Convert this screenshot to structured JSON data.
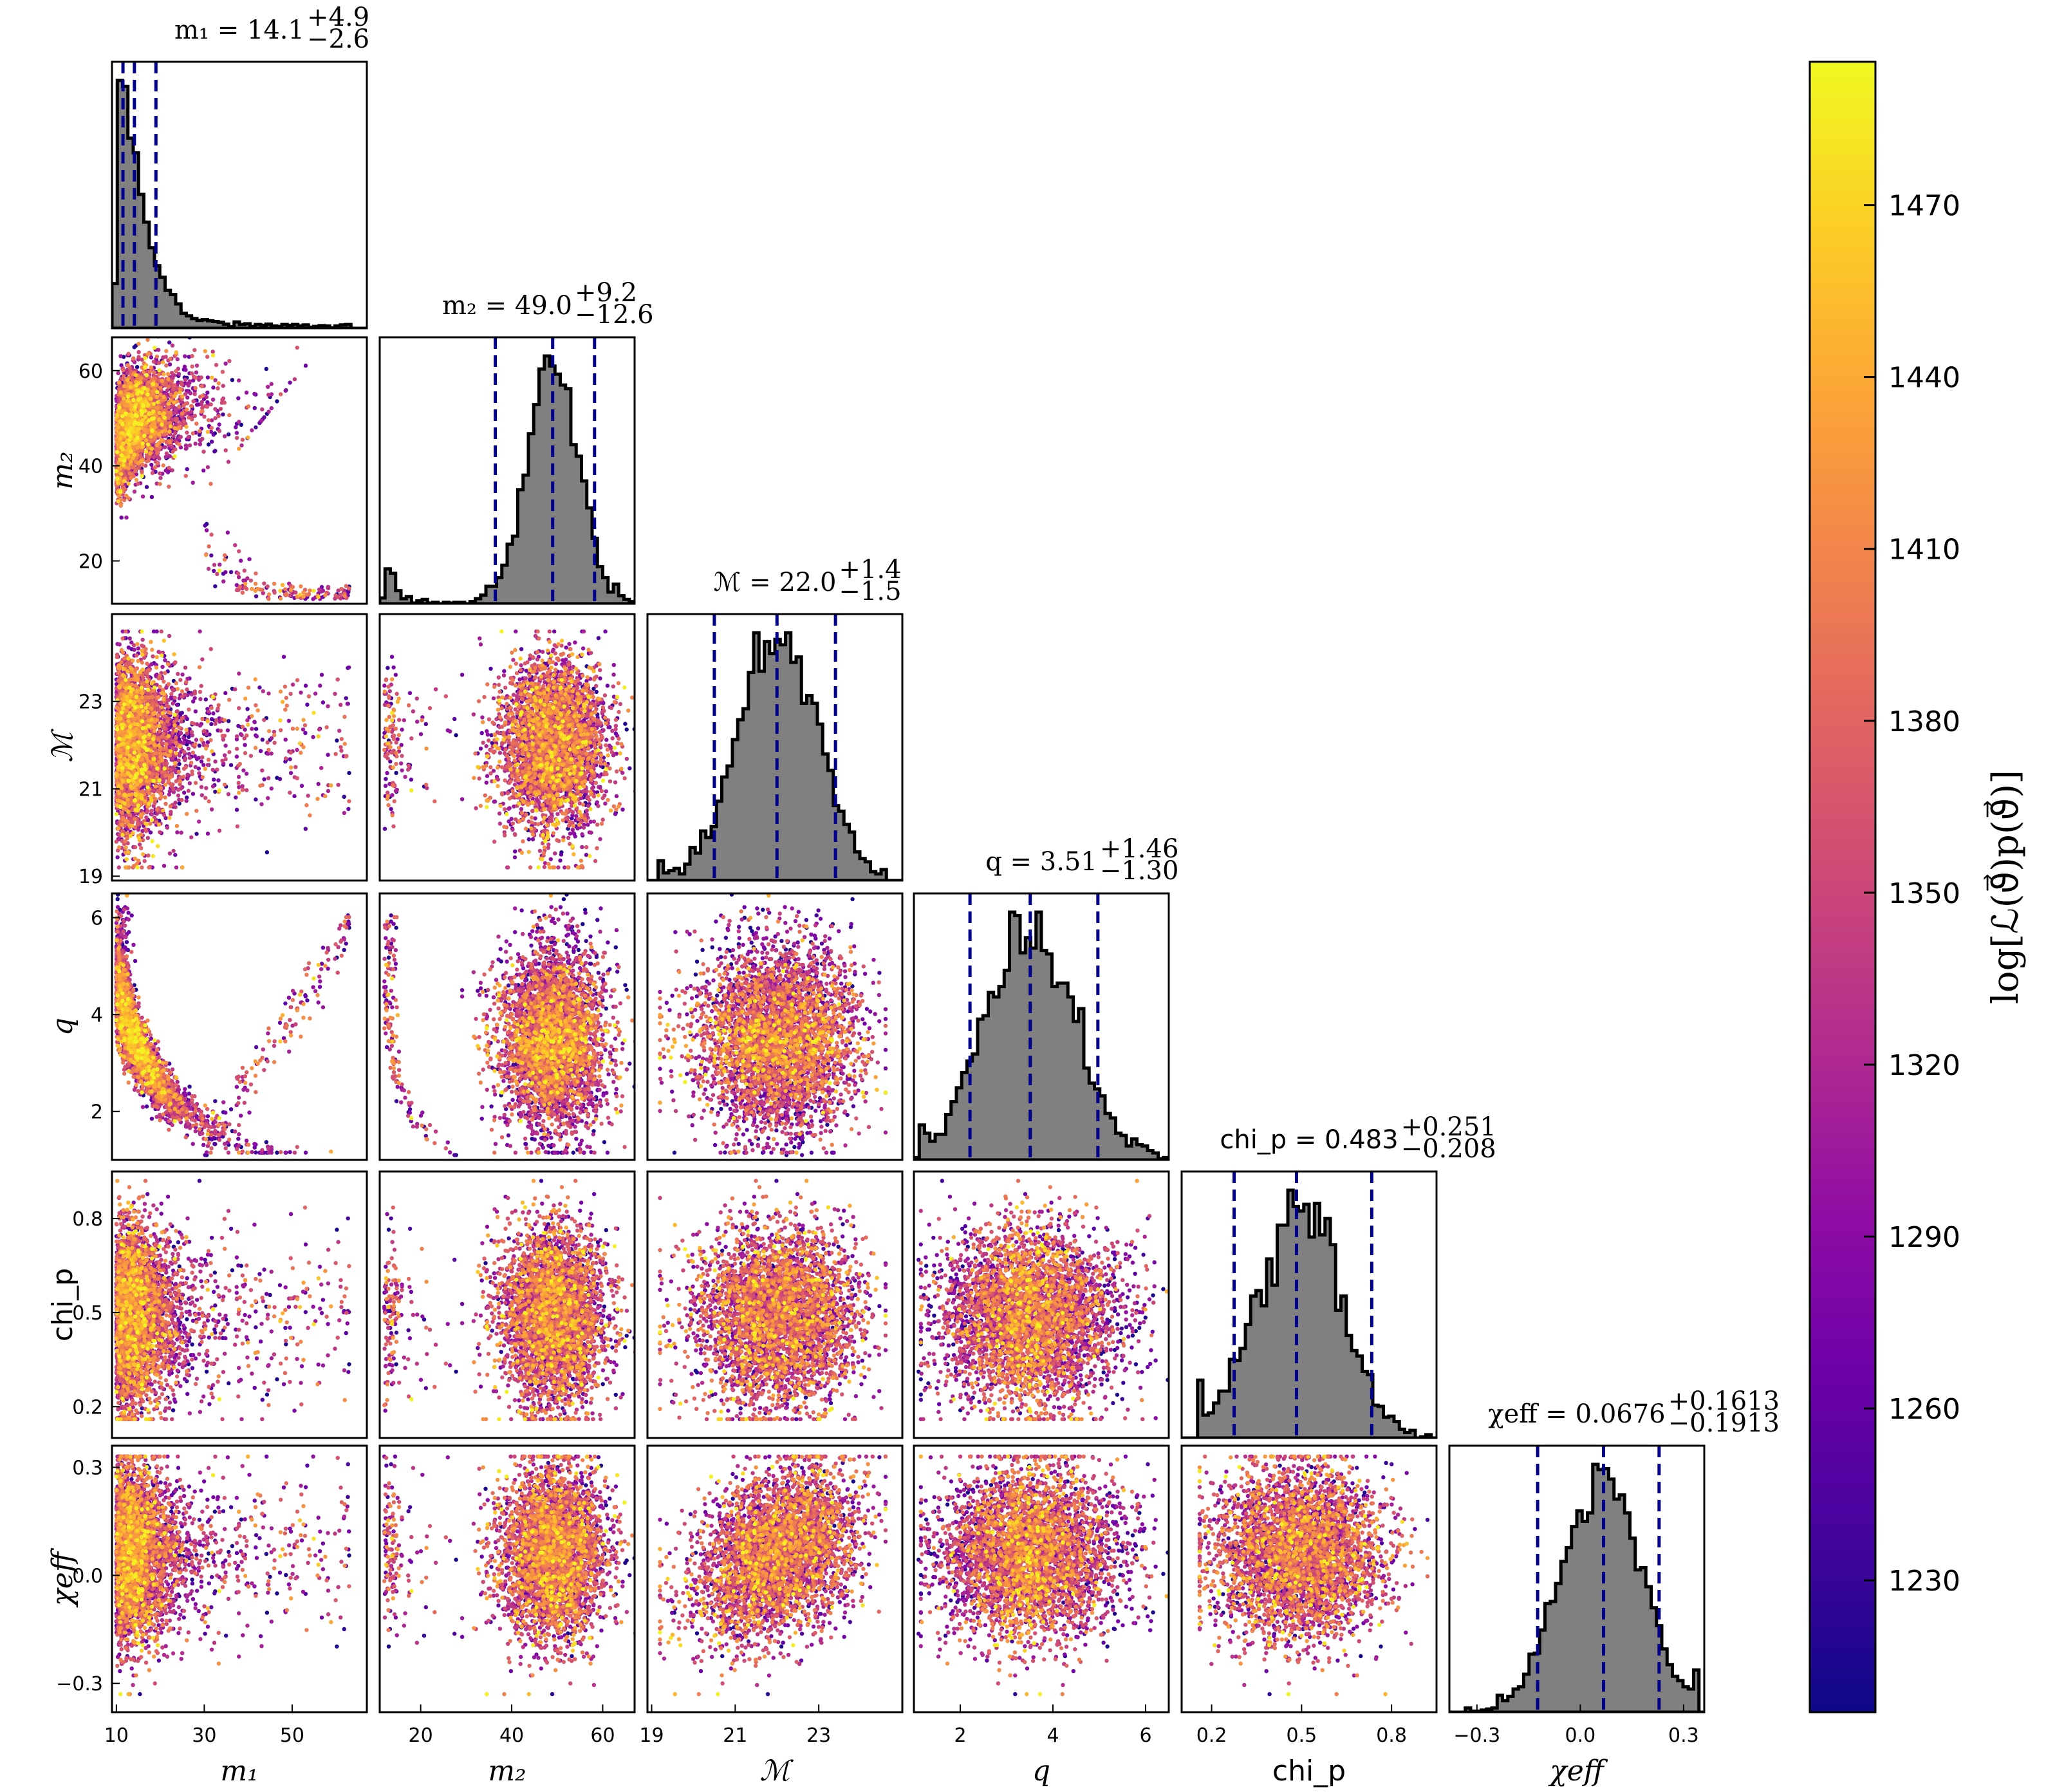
{
  "chart_data": {
    "type": "scatter",
    "subtype": "corner-plot",
    "parameters": [
      {
        "key": "m1",
        "label": "m1",
        "math": true,
        "summary_value": "14.1",
        "err_plus": "+4.9",
        "err_minus": "−2.6",
        "ticks": [
          10,
          30,
          50
        ],
        "range": [
          9,
          67
        ],
        "median": 14.1,
        "lo": 11.5,
        "hi": 19.0
      },
      {
        "key": "m2",
        "label": "m2",
        "math": true,
        "summary_value": "49.0",
        "err_plus": "+9.2",
        "err_minus": "−12.6",
        "ticks": [
          20,
          40,
          60
        ],
        "range": [
          11,
          67
        ],
        "median": 49.0,
        "lo": 36.4,
        "hi": 58.2
      },
      {
        "key": "mc",
        "label": "ℳ",
        "math": true,
        "summary_value": "22.0",
        "err_plus": "+1.4",
        "err_minus": "−1.5",
        "ticks": [
          19,
          21,
          23
        ],
        "range": [
          18.9,
          25
        ],
        "median": 22.0,
        "lo": 20.5,
        "hi": 23.4
      },
      {
        "key": "q",
        "label": "q",
        "math": true,
        "summary_value": "3.51",
        "err_plus": "+1.46",
        "err_minus": "−1.30",
        "ticks": [
          2,
          4,
          6
        ],
        "range": [
          1,
          6.5
        ],
        "median": 3.51,
        "lo": 2.21,
        "hi": 4.97
      },
      {
        "key": "chi_p",
        "label": "chi_p",
        "math": false,
        "summary_value": "0.483",
        "err_plus": "+0.251",
        "err_minus": "−0.208",
        "ticks": [
          0.2,
          0.5,
          0.8
        ],
        "range": [
          0.1,
          0.95
        ],
        "median": 0.483,
        "lo": 0.275,
        "hi": 0.734
      },
      {
        "key": "chi_eff",
        "label": "χeff",
        "math": true,
        "summary_value": "0.0676",
        "err_plus": "+0.1613",
        "err_minus": "−0.1913",
        "ticks": [
          -0.3,
          0.0,
          0.3
        ],
        "range": [
          -0.38,
          0.36
        ],
        "median": 0.0676,
        "lo": -0.1237,
        "hi": 0.2289
      }
    ],
    "tick_labels": {
      "m1": [
        "10",
        "30",
        "50"
      ],
      "m2": [
        "20",
        "40",
        "60"
      ],
      "mc": [
        "19",
        "21",
        "23"
      ],
      "q": [
        "2",
        "4",
        "6"
      ],
      "chi_p": [
        "0.2",
        "0.5",
        "0.8"
      ],
      "chi_eff": [
        "−0.3",
        "0.0",
        "0.3"
      ]
    },
    "axis_labels": {
      "m1": "m₁",
      "m2": "m₂",
      "mc": "ℳ",
      "q": "q",
      "chi_p": "chi_p",
      "chi_eff": "χeff"
    },
    "titles": {
      "m1": "m₁ = 14.1",
      "m2": "m₂ = 49.0",
      "mc": "ℳ = 22.0",
      "q": "q = 3.51",
      "chi_p": "chi_p = 0.483",
      "chi_eff": "χeff = 0.0676"
    },
    "colorbar": {
      "label": "log[ℒ(ϑ⃗)p(ϑ⃗)]",
      "ticks": [
        1230,
        1260,
        1290,
        1320,
        1350,
        1380,
        1410,
        1440,
        1470
      ],
      "tick_labels": [
        "1230",
        "1260",
        "1290",
        "1320",
        "1350",
        "1380",
        "1410",
        "1440",
        "1470"
      ],
      "range": [
        1207,
        1495
      ],
      "colormap": "plasma"
    },
    "histogram_fill": "#808080",
    "quantile_line_color": "#00008b",
    "grid": false
  }
}
